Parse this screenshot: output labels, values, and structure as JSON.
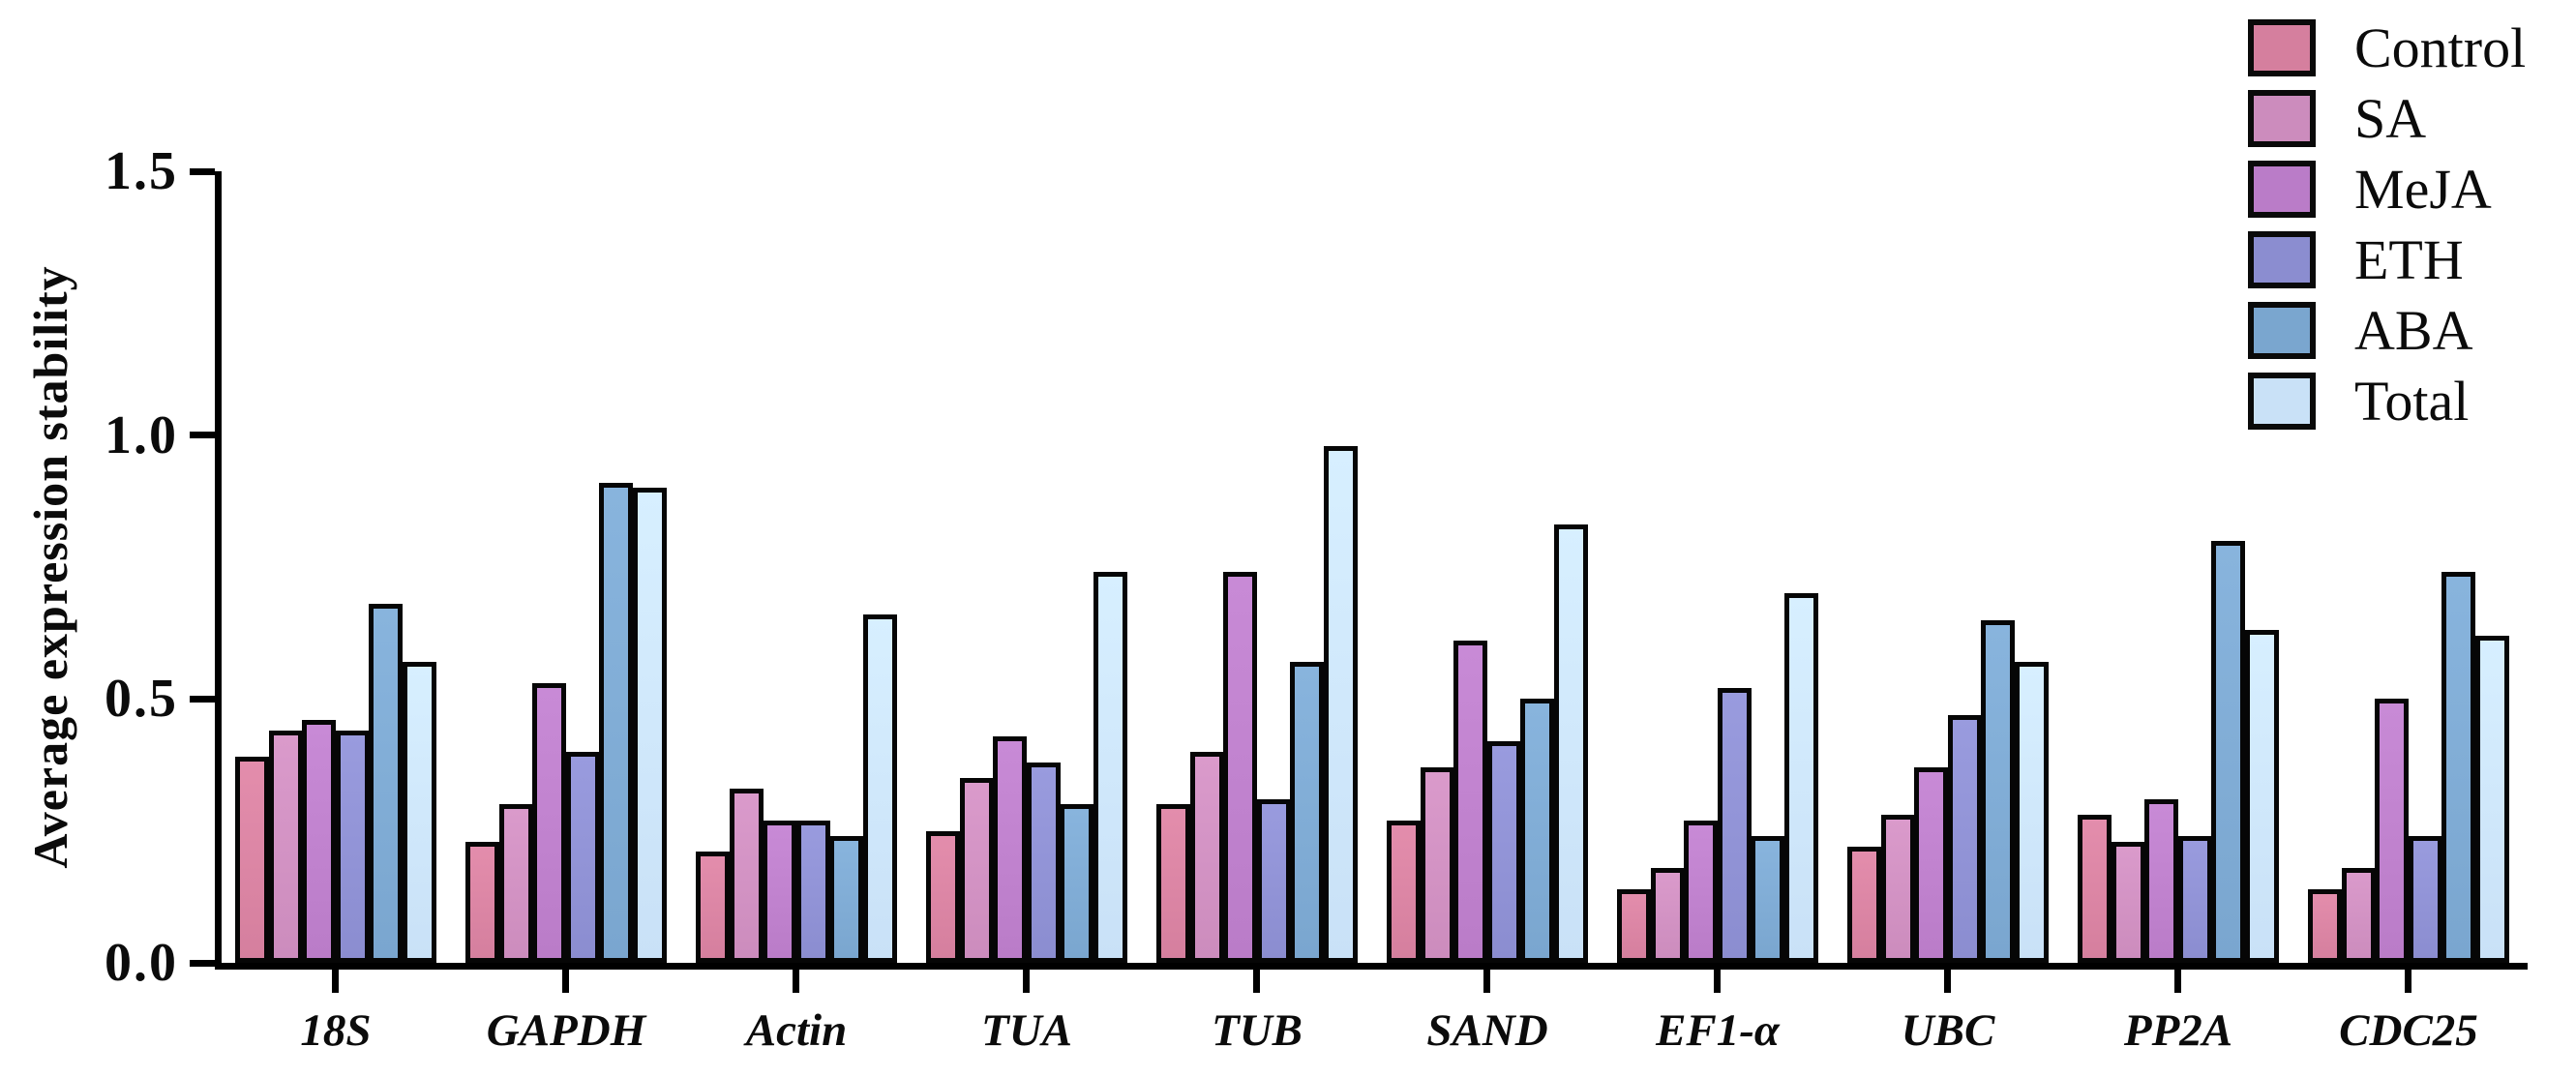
{
  "figure": {
    "background": "#ffffff"
  },
  "chart_data": {
    "type": "bar",
    "title": "",
    "xlabel": "",
    "ylabel": "Average expression stability",
    "ylim": [
      0,
      1.5
    ],
    "grid": false,
    "legend_position": "top-right",
    "bar_outline_color": "#000000",
    "yticks": [
      {
        "value": 0.0,
        "label": "0.0"
      },
      {
        "value": 0.5,
        "label": "0.5"
      },
      {
        "value": 1.0,
        "label": "1.0"
      },
      {
        "value": 1.5,
        "label": "1.5"
      }
    ],
    "categories": [
      "18S",
      "GAPDH",
      "Actin",
      "TUA",
      "TUB",
      "SAND",
      "EF1-α",
      "UBC",
      "PP2A",
      "CDC25"
    ],
    "series": [
      {
        "name": "Control",
        "color": "#d57f9e",
        "values": [
          0.39,
          0.23,
          0.21,
          0.25,
          0.3,
          0.27,
          0.14,
          0.22,
          0.28,
          0.14
        ]
      },
      {
        "name": "SA",
        "color": "#cc8cbd",
        "values": [
          0.44,
          0.3,
          0.33,
          0.35,
          0.4,
          0.37,
          0.18,
          0.28,
          0.23,
          0.18
        ]
      },
      {
        "name": "MeJA",
        "color": "#ba7cc8",
        "values": [
          0.46,
          0.53,
          0.27,
          0.43,
          0.74,
          0.61,
          0.27,
          0.37,
          0.31,
          0.5
        ]
      },
      {
        "name": "ETH",
        "color": "#8b8dd0",
        "values": [
          0.44,
          0.4,
          0.27,
          0.38,
          0.31,
          0.42,
          0.52,
          0.47,
          0.24,
          0.24
        ]
      },
      {
        "name": "ABA",
        "color": "#7aa6cf",
        "values": [
          0.68,
          0.91,
          0.24,
          0.3,
          0.57,
          0.5,
          0.24,
          0.65,
          0.8,
          0.74
        ]
      },
      {
        "name": "Total",
        "color": "#c9e1f7",
        "values": [
          0.57,
          0.9,
          0.66,
          0.74,
          0.98,
          0.83,
          0.7,
          0.57,
          0.63,
          0.62
        ]
      }
    ]
  }
}
